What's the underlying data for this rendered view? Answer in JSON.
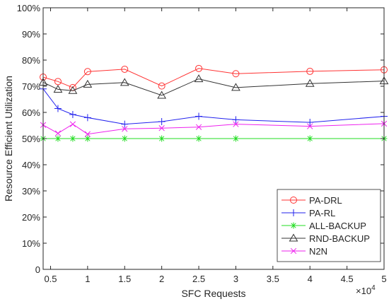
{
  "chart_data": {
    "type": "line",
    "title": "",
    "xlabel": "SFC Requests",
    "ylabel": "Resource Efficient Utilization",
    "x_exponent_label": "×10",
    "x_exponent_power": "4",
    "xlim": [
      0.4,
      5
    ],
    "ylim": [
      0,
      100
    ],
    "xticks": [
      0.5,
      1,
      1.5,
      2,
      2.5,
      3,
      3.5,
      4,
      4.5,
      5
    ],
    "xtick_labels": [
      "0.5",
      "1",
      "1.5",
      "2",
      "2.5",
      "3",
      "3.5",
      "4",
      "4.5",
      "5"
    ],
    "yticks": [
      0,
      10,
      20,
      30,
      40,
      50,
      60,
      70,
      80,
      90,
      100
    ],
    "ytick_labels": [
      "0",
      "10%",
      "20%",
      "30%",
      "40%",
      "50%",
      "60%",
      "70%",
      "80%",
      "90%",
      "100%"
    ],
    "grid": false,
    "legend_position": "bottom-right",
    "x": [
      0.4,
      0.6,
      0.8,
      1,
      1.5,
      2,
      2.5,
      3,
      4,
      5
    ],
    "series": [
      {
        "name": "PA-DRL",
        "color": "#ff3333",
        "marker": "circle",
        "values": [
          73.5,
          71.8,
          69.5,
          75.6,
          76.5,
          70.1,
          76.8,
          74.8,
          75.7,
          76.3
        ]
      },
      {
        "name": "PA-RL",
        "color": "#2222ee",
        "marker": "plus",
        "values": [
          69.0,
          61.5,
          59.2,
          58.0,
          55.5,
          56.5,
          58.5,
          57.2,
          56.2,
          58.5
        ]
      },
      {
        "name": "ALL-BACKUP",
        "color": "#22dd22",
        "marker": "star",
        "values": [
          50,
          50,
          50,
          50,
          50,
          50,
          50,
          50,
          50,
          50
        ]
      },
      {
        "name": "RND-BACKUP",
        "color": "#333333",
        "marker": "triangle",
        "values": [
          71.5,
          68.8,
          68.3,
          70.7,
          71.4,
          66.5,
          72.8,
          69.5,
          71.0,
          72.0
        ]
      },
      {
        "name": "N2N",
        "color": "#ee22ee",
        "marker": "cross",
        "values": [
          55.2,
          52.0,
          55.5,
          51.7,
          53.7,
          54.0,
          54.4,
          55.5,
          54.7,
          55.7
        ]
      }
    ]
  }
}
